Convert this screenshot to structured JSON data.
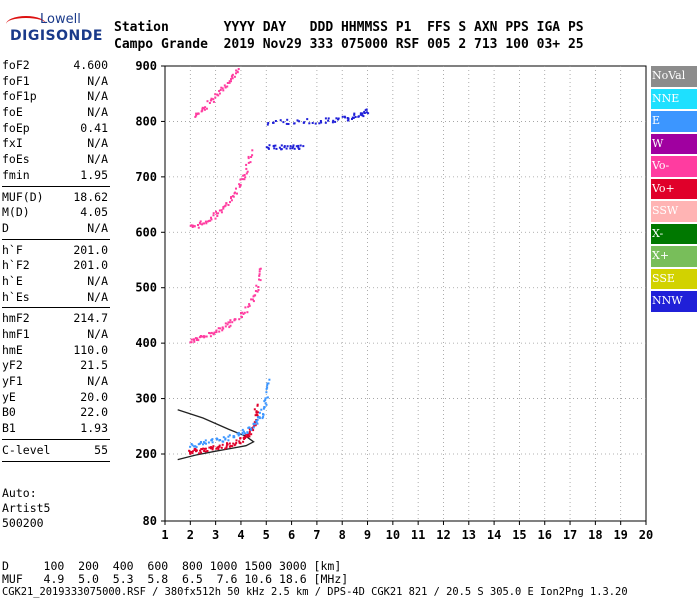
{
  "logo": {
    "line1": "Lowell",
    "line2": "DIGISONDE"
  },
  "header": {
    "line1": "Station       YYYY DAY   DDD HHMMSS P1  FFS S AXN PPS IGA PS",
    "line2": "Campo Grande  2019 Nov29 333 075000 RSF 005 2 713 100 03+ 25"
  },
  "params": {
    "group1": [
      {
        "k": "foF2",
        "v": "4.600"
      },
      {
        "k": "foF1",
        "v": "N/A"
      },
      {
        "k": "foF1p",
        "v": "N/A"
      },
      {
        "k": "foE",
        "v": "N/A"
      },
      {
        "k": "foEp",
        "v": "0.41"
      },
      {
        "k": "fxI",
        "v": "N/A"
      },
      {
        "k": "foEs",
        "v": "N/A"
      },
      {
        "k": "fmin",
        "v": "1.95"
      }
    ],
    "group2": [
      {
        "k": "MUF(D)",
        "v": "18.62"
      },
      {
        "k": "M(D)",
        "v": "4.05"
      },
      {
        "k": "D",
        "v": "N/A"
      }
    ],
    "group3": [
      {
        "k": "h`F",
        "v": "201.0"
      },
      {
        "k": "h`F2",
        "v": "201.0"
      },
      {
        "k": "h`E",
        "v": "N/A"
      },
      {
        "k": "h`Es",
        "v": "N/A"
      }
    ],
    "group4": [
      {
        "k": "hmF2",
        "v": "214.7"
      },
      {
        "k": "hmF1",
        "v": "N/A"
      },
      {
        "k": "hmE",
        "v": "110.0"
      },
      {
        "k": "yF2",
        "v": "21.5"
      },
      {
        "k": "yF1",
        "v": "N/A"
      },
      {
        "k": "yE",
        "v": "20.0"
      },
      {
        "k": "B0",
        "v": "22.0"
      },
      {
        "k": "B1",
        "v": "1.93"
      }
    ],
    "group5": [
      {
        "k": "C-level",
        "v": "55"
      }
    ]
  },
  "auto": {
    "line1": "Auto:",
    "line2": "Artist5",
    "line3": "500200"
  },
  "legend": [
    {
      "label": "NoVal",
      "color": "#8c8c8c"
    },
    {
      "label": "NNE",
      "color": "#1ee0ff"
    },
    {
      "label": "E",
      "color": "#3c96ff"
    },
    {
      "label": "W",
      "color": "#a000a0"
    },
    {
      "label": "Vo-",
      "color": "#ff3ca0"
    },
    {
      "label": "Vo+",
      "color": "#e0002a"
    },
    {
      "label": "SSW",
      "color": "#ffb4b4"
    },
    {
      "label": "X-",
      "color": "#007800"
    },
    {
      "label": "X+",
      "color": "#78be5a"
    },
    {
      "label": "SSE",
      "color": "#d2d200"
    },
    {
      "label": "NNW",
      "color": "#2020d8"
    }
  ],
  "footer": {
    "line1": "D     100  200  400  600  800 1000 1500 3000 [km]",
    "line2": "MUF   4.9  5.0  5.3  5.8  6.5  7.6 10.6 18.6 [MHz]",
    "line3": "CGK21_2019333075000.RSF / 380fx512h 50 kHz 2.5 km / DPS-4D CGK21 821 / 20.5 S 305.0 E Ion2Png 1.3.20"
  },
  "chart_data": {
    "type": "scatter",
    "xlim": [
      1,
      20
    ],
    "ylim": [
      80,
      900
    ],
    "xticks": [
      1,
      2,
      3,
      4,
      5,
      6,
      7,
      8,
      9,
      10,
      11,
      12,
      13,
      14,
      15,
      16,
      17,
      18,
      19,
      20
    ],
    "yticks": [
      80,
      200,
      300,
      400,
      500,
      600,
      700,
      800,
      900
    ],
    "grid": "dotted",
    "traces": [
      {
        "name": "F2 O-trace",
        "color": "#e0002a",
        "points": [
          [
            1.95,
            205
          ],
          [
            2.2,
            207
          ],
          [
            2.6,
            210
          ],
          [
            3.0,
            213
          ],
          [
            3.4,
            217
          ],
          [
            3.8,
            222
          ],
          [
            4.1,
            228
          ],
          [
            4.3,
            236
          ],
          [
            4.45,
            250
          ],
          [
            4.55,
            268
          ],
          [
            4.6,
            290
          ]
        ]
      },
      {
        "name": "F2 X-trace",
        "color": "#3c96ff",
        "points": [
          [
            2.0,
            215
          ],
          [
            2.4,
            220
          ],
          [
            2.9,
            225
          ],
          [
            3.4,
            230
          ],
          [
            3.9,
            238
          ],
          [
            4.3,
            246
          ],
          [
            4.6,
            258
          ],
          [
            4.8,
            275
          ],
          [
            5.0,
            300
          ],
          [
            5.1,
            340
          ]
        ]
      },
      {
        "name": "2nd hop",
        "color": "#ff3ca0",
        "points": [
          [
            1.95,
            405
          ],
          [
            2.3,
            410
          ],
          [
            2.7,
            417
          ],
          [
            3.1,
            425
          ],
          [
            3.5,
            435
          ],
          [
            3.9,
            448
          ],
          [
            4.3,
            470
          ],
          [
            4.6,
            500
          ],
          [
            4.8,
            540
          ]
        ]
      },
      {
        "name": "3rd hop",
        "color": "#ff3ca0",
        "points": [
          [
            2.0,
            610
          ],
          [
            2.4,
            617
          ],
          [
            2.8,
            628
          ],
          [
            3.2,
            642
          ],
          [
            3.6,
            660
          ],
          [
            3.9,
            685
          ],
          [
            4.2,
            715
          ],
          [
            4.4,
            750
          ]
        ]
      },
      {
        "name": "4th hop",
        "color": "#ff3ca0",
        "points": [
          [
            2.1,
            810
          ],
          [
            2.5,
            825
          ],
          [
            2.9,
            843
          ],
          [
            3.3,
            862
          ],
          [
            3.6,
            880
          ],
          [
            3.9,
            895
          ]
        ]
      },
      {
        "name": "Spread band",
        "color": "#2020d8",
        "points": [
          [
            5.0,
            800
          ],
          [
            6.0,
            801
          ],
          [
            7.0,
            802
          ],
          [
            7.8,
            805
          ],
          [
            8.3,
            808
          ],
          [
            8.7,
            815
          ],
          [
            9.0,
            820
          ]
        ]
      },
      {
        "name": "Spread band 2",
        "color": "#2020d8",
        "points": [
          [
            5.0,
            755
          ],
          [
            5.5,
            755
          ],
          [
            6.0,
            755
          ],
          [
            6.4,
            755
          ]
        ]
      }
    ],
    "profile": [
      [
        1.5,
        190
      ],
      [
        2.2,
        198
      ],
      [
        3.0,
        205
      ],
      [
        3.6,
        210
      ],
      [
        4.2,
        215
      ],
      [
        4.5,
        222
      ],
      [
        4.2,
        232
      ],
      [
        3.5,
        245
      ],
      [
        2.5,
        265
      ],
      [
        1.5,
        280
      ]
    ]
  }
}
